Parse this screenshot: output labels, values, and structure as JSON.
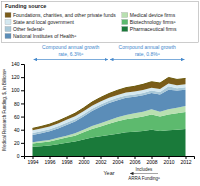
{
  "chart_data": {
    "type": "area",
    "stacked": true,
    "legend_title": "Funding source",
    "xlabel": "Year",
    "ylabel": "Medical Research Funding, $, in Billionsᵃ",
    "x": [
      1994,
      1995,
      1996,
      1997,
      1998,
      1999,
      2000,
      2001,
      2002,
      2003,
      2004,
      2005,
      2006,
      2007,
      2008,
      2009,
      2010,
      2011,
      2012
    ],
    "series": [
      {
        "name": "Pharmaceutical firms",
        "color": "#1a7a3a",
        "values": [
          14,
          15,
          16,
          18,
          20,
          22,
          25,
          28,
          30,
          32,
          34,
          36,
          37,
          38,
          40,
          38,
          39,
          40,
          41
        ]
      },
      {
        "name": "Biotechnology firmsᵃ",
        "color": "#5dba6e",
        "values": [
          5,
          5.5,
          6,
          7,
          8,
          9,
          11,
          13,
          15,
          17,
          19,
          20,
          21,
          22,
          23,
          22,
          24,
          25,
          26
        ]
      },
      {
        "name": "Medical device firms",
        "color": "#b8e0b0",
        "values": [
          2,
          2.2,
          2.5,
          2.8,
          3,
          3.5,
          4,
          4.5,
          5,
          5.5,
          6,
          6.5,
          7,
          7.5,
          8,
          7.5,
          8,
          8.5,
          9
        ]
      },
      {
        "name": "National Institutes of Healthᵃ",
        "color": "#5b8db8",
        "values": [
          11,
          12,
          13,
          14,
          16,
          18,
          20,
          23,
          25,
          26,
          26,
          26,
          25,
          25,
          25,
          26,
          30,
          26,
          25
        ]
      },
      {
        "name": "Other federalᵃ",
        "color": "#a8c8d8",
        "values": [
          3,
          3,
          3.2,
          3.3,
          3.5,
          3.5,
          3.5,
          3.5,
          3.5,
          3.5,
          3.5,
          3.5,
          3.5,
          3.5,
          3.5,
          4,
          5,
          3.5,
          3.5
        ]
      },
      {
        "name": "State and local government",
        "color": "#d4e8f0",
        "values": [
          4,
          4,
          4.2,
          4.3,
          4.5,
          4.5,
          4.5,
          4.5,
          4.5,
          4.5,
          4.5,
          4.5,
          4.5,
          4.5,
          4.5,
          4.5,
          4.5,
          4.5,
          4.5
        ]
      },
      {
        "name": "Foundations, charities, and other private funds",
        "color": "#7a5c1a",
        "values": [
          3,
          3.2,
          3.5,
          3.8,
          4,
          4.5,
          5,
          5.5,
          6,
          6.5,
          7,
          7.5,
          8,
          8.5,
          9,
          9,
          9,
          9,
          9
        ]
      },
      {
        "type": "line",
        "color": "#6b5a0a",
        "values": [
          42,
          44.9,
          48.4,
          53.2,
          59,
          65,
          73,
          82,
          89,
          95,
          100,
          104,
          106,
          109,
          113,
          111,
          119.5,
          116.5,
          118
        ]
      }
    ],
    "xlim": [
      1993,
      2013
    ],
    "xticks": [
      1994,
      1996,
      1998,
      2000,
      2002,
      2004,
      2006,
      2008,
      2010,
      2012
    ],
    "ylim": [
      0,
      140
    ],
    "yticks": [
      0,
      20,
      40,
      60,
      80,
      100,
      120,
      140
    ],
    "grid": false,
    "legend": "top",
    "annotations": [
      {
        "text": "Compound annual growth\nrate, 6.3%ᵃ",
        "x_start": 1994,
        "x_end": 2003,
        "color": "#4488cc"
      },
      {
        "text": "Compound annual growth\nrate, 0.8%ᵃ",
        "x_start": 2003,
        "x_end": 2012,
        "color": "#4488cc"
      },
      {
        "text": "Includes\nARRA Fundingᵃ"
      }
    ]
  }
}
